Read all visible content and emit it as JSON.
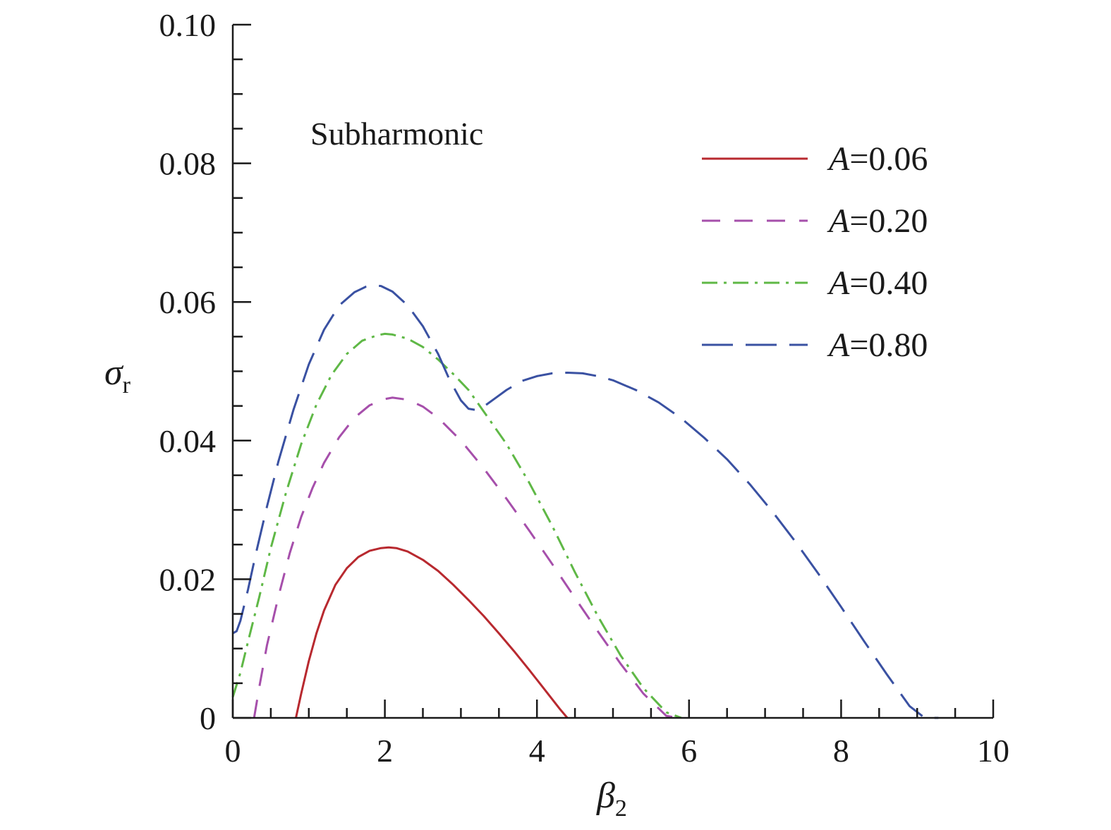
{
  "chart_data": {
    "type": "line",
    "annotation": "Subharmonic",
    "xlabel": {
      "symbol": "β",
      "subscript": "2"
    },
    "ylabel": {
      "symbol": "σ",
      "subscript": "r"
    },
    "xlim": [
      0,
      10
    ],
    "ylim": [
      0,
      0.1
    ],
    "xticks": [
      0,
      2,
      4,
      6,
      8,
      10
    ],
    "xtick_labels": [
      "0",
      "2",
      "4",
      "6",
      "8",
      "10"
    ],
    "xminor_step": 0.5,
    "yticks": [
      0,
      0.02,
      0.04,
      0.06,
      0.08,
      0.1
    ],
    "ytick_labels": [
      "0",
      "0.02",
      "0.04",
      "0.06",
      "0.08",
      "0.10"
    ],
    "yminor_step": 0.005,
    "legend_position": "top-right",
    "series": [
      {
        "name": "A=0.06",
        "label_var": "A",
        "label_value": "=0.06",
        "color": "#b8292f",
        "dash": "solid",
        "x": [
          0.83,
          0.9,
          1.0,
          1.1,
          1.2,
          1.35,
          1.5,
          1.65,
          1.8,
          1.95,
          2.05,
          2.15,
          2.3,
          2.5,
          2.7,
          2.9,
          3.1,
          3.3,
          3.5,
          3.7,
          3.9,
          4.1,
          4.3,
          4.4
        ],
        "y": [
          0.0,
          0.0035,
          0.0082,
          0.0122,
          0.0155,
          0.0192,
          0.0216,
          0.0232,
          0.0241,
          0.0245,
          0.0246,
          0.0245,
          0.024,
          0.0228,
          0.0212,
          0.0192,
          0.017,
          0.0147,
          0.0122,
          0.0096,
          0.0069,
          0.0041,
          0.0013,
          0.0
        ]
      },
      {
        "name": "A=0.20",
        "label_var": "A",
        "label_value": "=0.20",
        "color": "#a64fab",
        "dash": "dashed",
        "x": [
          0.28,
          0.35,
          0.45,
          0.6,
          0.75,
          0.9,
          1.05,
          1.2,
          1.4,
          1.6,
          1.8,
          2.0,
          2.1,
          2.3,
          2.5,
          2.7,
          3.0,
          3.3,
          3.6,
          3.9,
          4.2,
          4.5,
          4.8,
          5.1,
          5.4,
          5.7,
          5.85
        ],
        "y": [
          0.0,
          0.0045,
          0.0105,
          0.0175,
          0.0238,
          0.029,
          0.0332,
          0.0368,
          0.0405,
          0.0433,
          0.0451,
          0.046,
          0.0462,
          0.0459,
          0.0449,
          0.0433,
          0.04,
          0.036,
          0.0316,
          0.027,
          0.0222,
          0.0173,
          0.0125,
          0.0078,
          0.0035,
          0.0003,
          0.0
        ]
      },
      {
        "name": "A=0.40",
        "label_var": "A",
        "label_value": "=0.40",
        "color": "#5fb846",
        "dash": "dashdot",
        "x": [
          0.0,
          0.1,
          0.2,
          0.35,
          0.5,
          0.7,
          0.9,
          1.1,
          1.3,
          1.5,
          1.7,
          1.9,
          2.0,
          2.1,
          2.3,
          2.5,
          2.7,
          2.9,
          3.1,
          3.3,
          3.6,
          3.9,
          4.2,
          4.5,
          4.8,
          5.1,
          5.4,
          5.7,
          5.9
        ],
        "y": [
          0.003,
          0.0065,
          0.011,
          0.0175,
          0.0245,
          0.0325,
          0.0395,
          0.0452,
          0.0495,
          0.0525,
          0.0544,
          0.0552,
          0.0554,
          0.0553,
          0.0547,
          0.0535,
          0.0517,
          0.0496,
          0.0473,
          0.0442,
          0.0395,
          0.0339,
          0.0277,
          0.021,
          0.0147,
          0.009,
          0.0043,
          0.0008,
          0.0
        ]
      },
      {
        "name": "A=0.80",
        "label_var": "A",
        "label_value": "=0.80",
        "color": "#3a51a2",
        "dash": "longdash",
        "x": [
          0.0,
          0.05,
          0.1,
          0.2,
          0.3,
          0.45,
          0.6,
          0.8,
          1.0,
          1.2,
          1.4,
          1.6,
          1.75,
          1.85,
          1.95,
          2.1,
          2.3,
          2.5,
          2.7,
          2.85,
          3.0,
          3.1,
          3.2,
          3.3,
          3.45,
          3.6,
          3.8,
          4.0,
          4.2,
          4.4,
          4.6,
          4.8,
          5.0,
          5.3,
          5.6,
          5.9,
          6.2,
          6.5,
          6.8,
          7.1,
          7.4,
          7.7,
          8.0,
          8.3,
          8.6,
          8.9,
          9.1,
          9.28
        ],
        "y": [
          0.0122,
          0.0125,
          0.014,
          0.0185,
          0.0235,
          0.0305,
          0.037,
          0.0445,
          0.051,
          0.056,
          0.0595,
          0.0614,
          0.0622,
          0.0624,
          0.0623,
          0.0615,
          0.0595,
          0.0565,
          0.0525,
          0.0488,
          0.0458,
          0.0446,
          0.0444,
          0.0449,
          0.0461,
          0.0473,
          0.0486,
          0.0493,
          0.0497,
          0.0498,
          0.0497,
          0.0493,
          0.0487,
          0.0473,
          0.0455,
          0.0432,
          0.0404,
          0.0373,
          0.0337,
          0.0297,
          0.0254,
          0.0208,
          0.016,
          0.0111,
          0.0063,
          0.0017,
          0.0,
          0.0
        ]
      }
    ]
  }
}
